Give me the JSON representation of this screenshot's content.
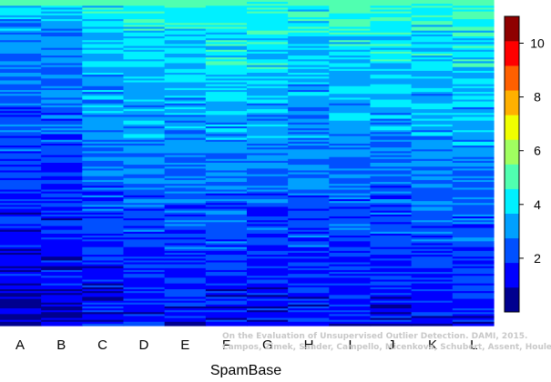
{
  "chart_data": {
    "type": "heatmap",
    "xlabel": "SpamBase",
    "ylabel": "",
    "title": "",
    "categories": [
      "A",
      "B",
      "C",
      "D",
      "E",
      "F",
      "G",
      "H",
      "I",
      "J",
      "K",
      "L"
    ],
    "rows_approx": 170,
    "colorbar": {
      "ticks": [
        2,
        4,
        6,
        8,
        10
      ],
      "range": [
        0,
        11
      ],
      "levels": [
        "#00008f",
        "#0000ff",
        "#0050ff",
        "#00a0ff",
        "#00f0ff",
        "#50ffb0",
        "#a0ff60",
        "#f0ff00",
        "#ffb000",
        "#ff6000",
        "#ff0000",
        "#8f0000"
      ]
    },
    "column_profiles": [
      {
        "category": "A",
        "top": 3.8,
        "bottom": 1.0
      },
      {
        "category": "B",
        "top": 3.9,
        "bottom": 1.0
      },
      {
        "category": "C",
        "top": 5.0,
        "bottom": 1.3
      },
      {
        "category": "D",
        "top": 5.0,
        "bottom": 1.4
      },
      {
        "category": "E",
        "top": 5.2,
        "bottom": 1.5
      },
      {
        "category": "F",
        "top": 5.3,
        "bottom": 1.5
      },
      {
        "category": "G",
        "top": 5.3,
        "bottom": 1.3
      },
      {
        "category": "H",
        "top": 5.0,
        "bottom": 1.5
      },
      {
        "category": "I",
        "top": 5.0,
        "bottom": 1.6
      },
      {
        "category": "J",
        "top": 5.2,
        "bottom": 1.4
      },
      {
        "category": "K",
        "top": 5.2,
        "bottom": 1.5
      },
      {
        "category": "L",
        "top": 5.4,
        "bottom": 1.6
      }
    ]
  },
  "watermark": {
    "line1": "On the Evaluation of Unsupervised Outlier Detection. DAMI, 2015.",
    "line2": "Campos, Zimek, Sander, Campello, Micenková, Schubert, Assent, Houle"
  }
}
